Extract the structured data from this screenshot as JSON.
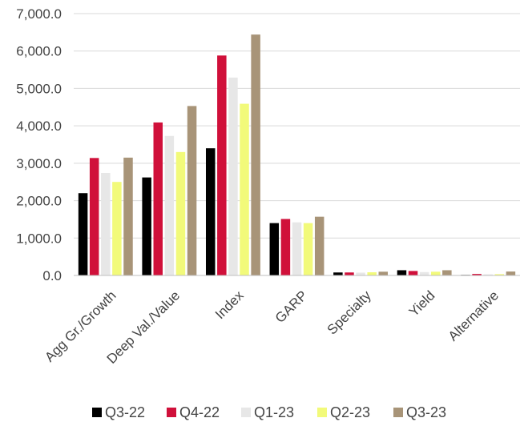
{
  "chart_data": {
    "type": "bar",
    "categories": [
      "Agg Gr./Growth",
      "Deep Val./Value",
      "Index",
      "GARP",
      "Specialty",
      "Yield",
      "Alternative"
    ],
    "series": [
      {
        "name": "Q3-22",
        "color": "#000000",
        "values": [
          2200,
          2620,
          3400,
          1400,
          80,
          140,
          15
        ]
      },
      {
        "name": "Q4-22",
        "color": "#d0103a",
        "values": [
          3140,
          4090,
          5880,
          1510,
          80,
          120,
          40
        ]
      },
      {
        "name": "Q1-23",
        "color": "#e7e7e7",
        "values": [
          2740,
          3730,
          5290,
          1420,
          75,
          90,
          30
        ]
      },
      {
        "name": "Q2-23",
        "color": "#f2fa7a",
        "values": [
          2500,
          3300,
          4590,
          1400,
          85,
          100,
          35
        ]
      },
      {
        "name": "Q3-23",
        "color": "#a89478",
        "values": [
          3150,
          4530,
          6440,
          1570,
          100,
          140,
          105
        ]
      }
    ],
    "yticks": [
      "0.0",
      "1,000.0",
      "2,000.0",
      "3,000.0",
      "4,000.0",
      "5,000.0",
      "6,000.0",
      "7,000.0"
    ],
    "ylim": [
      0,
      7000
    ],
    "grid": true,
    "legend_position": "bottom",
    "title": "",
    "xlabel": "",
    "ylabel": ""
  }
}
